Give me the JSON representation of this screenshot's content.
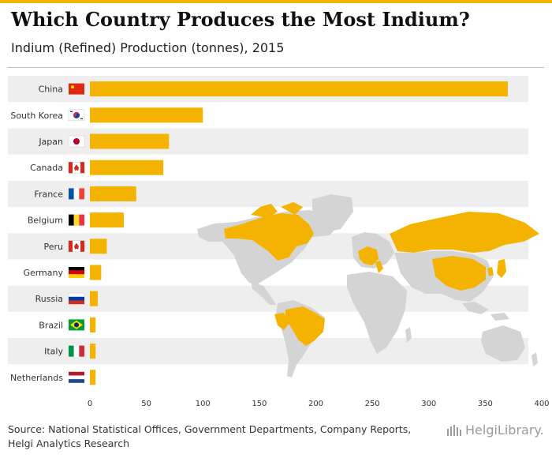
{
  "header": {
    "title": "Which Country Produces the Most Indium?",
    "subtitle": "Indium (Refined) Production (tonnes), 2015"
  },
  "footer": {
    "source_line1": "Source: National Statistical Offices, Government Departments, Company Reports,",
    "source_line2": "Helgi Analytics Research",
    "logo_text": "HelgiLibrary."
  },
  "colors": {
    "bar": "#f5b301",
    "band": "#eeeeee",
    "map_land": "#d4d4d4",
    "map_highlight": "#f5b301",
    "top_bar": "#f5b301"
  },
  "chart_data": {
    "type": "bar",
    "orientation": "horizontal",
    "title": "Which Country Produces the Most Indium?",
    "subtitle": "Indium (Refined) Production (tonnes), 2015",
    "xlabel": "",
    "ylabel": "",
    "xlim": [
      0,
      400
    ],
    "xticks": [
      0,
      50,
      100,
      150,
      200,
      250,
      300,
      350,
      400
    ],
    "grid": false,
    "legend": "none",
    "categories": [
      "China",
      "South Korea",
      "Japan",
      "Canada",
      "France",
      "Belgium",
      "Peru",
      "Germany",
      "Russia",
      "Brazil",
      "Italy",
      "Netherlands"
    ],
    "values": [
      370,
      100,
      70,
      65,
      41,
      30,
      15,
      10,
      7,
      5,
      5,
      5
    ],
    "flags": [
      "china-flag-icon",
      "south-korea-flag-icon",
      "japan-flag-icon",
      "canada-flag-icon",
      "france-flag-icon",
      "belgium-flag-icon",
      "peru-flag-icon",
      "germany-flag-icon",
      "russia-flag-icon",
      "brazil-flag-icon",
      "italy-flag-icon",
      "netherlands-flag-icon"
    ]
  }
}
